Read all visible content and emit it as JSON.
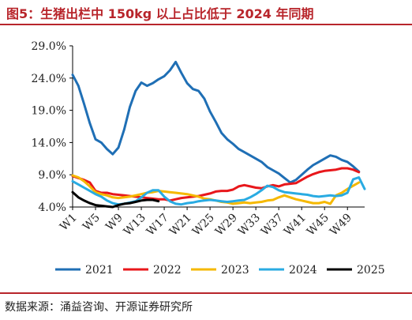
{
  "figure": {
    "title": "图5：生猪出栏中 150kg 以上占比低于 2024 年同期",
    "source": "数据来源：涌益咨询、开源证券研究所"
  },
  "chart_data": {
    "type": "line",
    "ylim": [
      4.0,
      29.0
    ],
    "yticks": [
      4.0,
      9.0,
      14.0,
      19.0,
      24.0,
      29.0
    ],
    "ytick_labels": [
      "4.0%",
      "9.0%",
      "14.0%",
      "19.0%",
      "24.0%",
      "29.0%"
    ],
    "x": [
      "W1",
      "W2",
      "W3",
      "W4",
      "W5",
      "W6",
      "W7",
      "W8",
      "W9",
      "W10",
      "W11",
      "W12",
      "W13",
      "W14",
      "W15",
      "W16",
      "W17",
      "W18",
      "W19",
      "W20",
      "W21",
      "W22",
      "W23",
      "W24",
      "W25",
      "W26",
      "W27",
      "W28",
      "W29",
      "W30",
      "W31",
      "W32",
      "W33",
      "W34",
      "W35",
      "W36",
      "W37",
      "W38",
      "W39",
      "W40",
      "W41",
      "W42",
      "W43",
      "W44",
      "W45",
      "W46",
      "W47",
      "W48",
      "W49",
      "W50",
      "W51",
      "W52"
    ],
    "xtick_labels": [
      "W1",
      "W5",
      "W9",
      "W13",
      "W17",
      "W21",
      "W25",
      "W29",
      "W33",
      "W37",
      "W41",
      "W45",
      "W49"
    ],
    "grid": false,
    "legend_position": "bottom",
    "series": [
      {
        "name": "2021",
        "color": "#1f6fb5",
        "values": [
          24.5,
          22.8,
          20.0,
          17.0,
          14.5,
          14.0,
          13.0,
          12.2,
          13.2,
          16.0,
          19.5,
          22.0,
          23.3,
          22.8,
          23.2,
          23.8,
          24.3,
          25.2,
          26.5,
          24.8,
          23.2,
          22.3,
          22.0,
          20.8,
          18.8,
          17.2,
          15.5,
          14.5,
          13.8,
          13.0,
          12.5,
          12.0,
          11.5,
          11.0,
          10.2,
          9.7,
          9.2,
          8.5,
          7.8,
          8.2,
          9.0,
          9.8,
          10.5,
          11.0,
          11.5,
          12.0,
          11.8,
          11.3,
          11.0,
          10.3,
          9.5,
          null
        ]
      },
      {
        "name": "2022",
        "color": "#e8171b",
        "values": [
          8.8,
          8.5,
          8.2,
          7.8,
          6.5,
          6.2,
          6.2,
          6.0,
          5.9,
          5.8,
          5.7,
          5.6,
          5.5,
          5.4,
          5.3,
          5.2,
          5.2,
          5.0,
          5.2,
          5.4,
          5.5,
          5.6,
          5.7,
          5.9,
          6.1,
          6.4,
          6.5,
          6.5,
          6.7,
          7.2,
          7.4,
          7.2,
          7.0,
          6.9,
          7.2,
          7.4,
          7.2,
          7.5,
          7.6,
          7.7,
          8.2,
          8.7,
          9.1,
          9.4,
          9.6,
          9.7,
          9.8,
          10.0,
          10.0,
          9.8,
          9.4,
          null
        ]
      },
      {
        "name": "2023",
        "color": "#f5b800",
        "values": [
          8.9,
          8.6,
          8.0,
          7.2,
          6.3,
          6.0,
          5.8,
          5.5,
          5.4,
          5.5,
          5.6,
          5.8,
          6.0,
          6.2,
          6.3,
          6.5,
          6.4,
          6.3,
          6.2,
          6.1,
          6.0,
          5.8,
          5.6,
          5.3,
          5.2,
          5.0,
          4.8,
          4.7,
          4.5,
          4.6,
          4.7,
          4.6,
          4.7,
          4.8,
          5.0,
          5.1,
          5.5,
          5.8,
          5.5,
          5.2,
          5.0,
          4.8,
          4.6,
          4.6,
          4.8,
          4.5,
          5.8,
          6.2,
          6.8,
          7.3,
          7.8,
          null
        ]
      },
      {
        "name": "2024",
        "color": "#29abe2",
        "values": [
          8.0,
          7.5,
          7.0,
          6.5,
          6.0,
          5.6,
          5.0,
          4.6,
          4.4,
          4.5,
          4.7,
          4.9,
          5.5,
          6.2,
          6.6,
          6.6,
          5.6,
          4.9,
          4.5,
          4.4,
          4.6,
          4.7,
          4.9,
          5.0,
          5.1,
          5.0,
          4.9,
          4.8,
          4.9,
          5.0,
          5.1,
          5.5,
          6.0,
          6.6,
          7.3,
          7.1,
          6.6,
          6.3,
          6.2,
          6.1,
          6.0,
          5.9,
          5.7,
          5.6,
          5.7,
          5.8,
          5.7,
          5.8,
          6.2,
          8.3,
          8.6,
          6.8
        ]
      },
      {
        "name": "2025",
        "color": "#000000",
        "values": [
          6.3,
          5.5,
          5.0,
          4.6,
          4.3,
          4.2,
          4.1,
          4.0,
          4.3,
          4.5,
          4.6,
          4.8,
          5.0,
          5.1,
          5.1,
          4.9,
          null,
          null,
          null,
          null,
          null,
          null,
          null,
          null,
          null,
          null,
          null,
          null,
          null,
          null,
          null,
          null,
          null,
          null,
          null,
          null,
          null,
          null,
          null,
          null,
          null,
          null,
          null,
          null,
          null,
          null,
          null,
          null,
          null,
          null,
          null,
          null
        ]
      }
    ]
  }
}
